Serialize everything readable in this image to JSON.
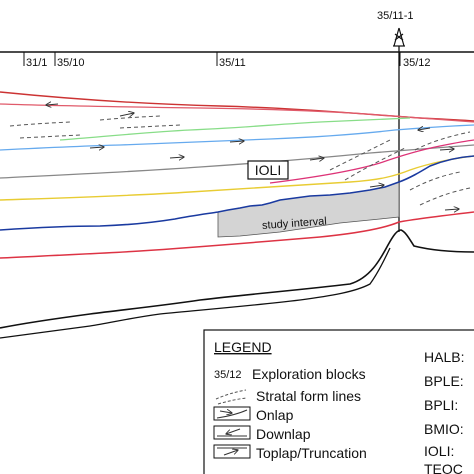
{
  "well": {
    "label": "35/11-1"
  },
  "blocks": [
    {
      "label": "31/1"
    },
    {
      "label": "35/10"
    },
    {
      "label": "35/11"
    },
    {
      "label": "35/12"
    }
  ],
  "callouts": {
    "ioli": "IOLI",
    "study_interval": "study interval"
  },
  "horizon_colors": {
    "top": "#cc3333",
    "red_upper": "#e05a6a",
    "green": "#88dd88",
    "blue_light": "#66aaee",
    "gray": "#888888",
    "magenta": "#dd3377",
    "yellow": "#e8cc33",
    "blue_dark": "#1a3aa0",
    "red_lower": "#dd3344",
    "basement": "#111111",
    "study_fill": "#d4d4d4"
  },
  "legend": {
    "title": "LEGEND",
    "items": [
      {
        "symbol": "35/12",
        "label": "Exploration blocks"
      },
      {
        "symbol": "dashed-lines-icon",
        "label": "Stratal form lines"
      },
      {
        "symbol": "onlap-icon",
        "label": "Onlap"
      },
      {
        "symbol": "downlap-icon",
        "label": "Downlap"
      },
      {
        "symbol": "toplap-icon",
        "label": "Toplap/Truncation"
      }
    ],
    "abbreviations": [
      "HALB:",
      "BPLE:",
      "BPLI:",
      "BMIO:",
      "IOLI:",
      "TEOC"
    ]
  }
}
